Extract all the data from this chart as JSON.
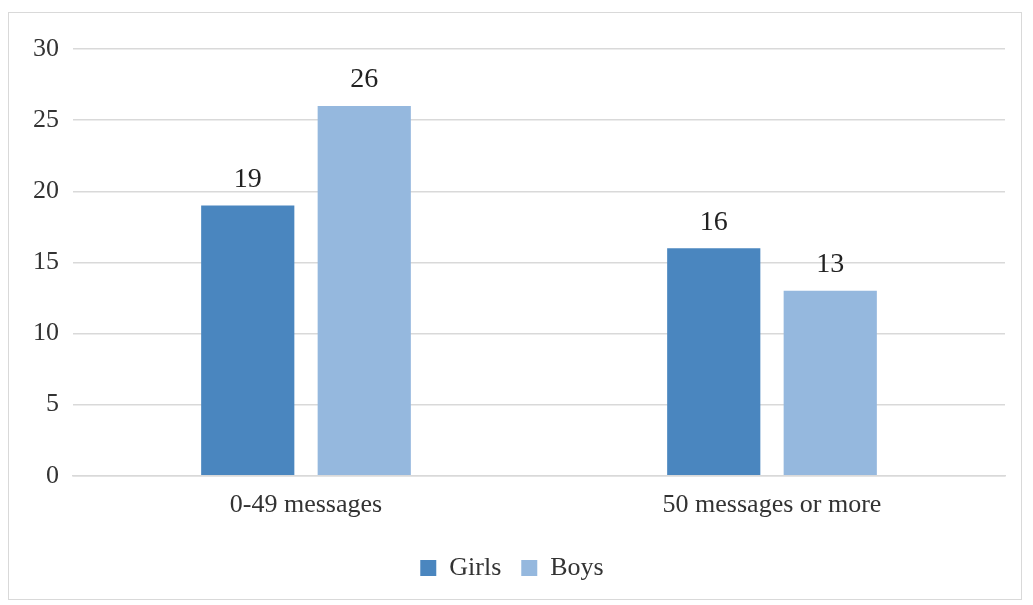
{
  "chart_data": {
    "type": "bar",
    "categories": [
      "0-49 messages",
      "50 messages or more"
    ],
    "series": [
      {
        "name": "Girls",
        "color": "#4a86bf",
        "values": [
          19,
          16
        ]
      },
      {
        "name": "Boys",
        "color": "#95b8de",
        "values": [
          26,
          13
        ]
      }
    ],
    "ylim": [
      0,
      30
    ],
    "yticks": [
      0,
      5,
      10,
      15,
      20,
      25,
      30
    ],
    "grid": "y",
    "legend": "bottom",
    "data_labels": true
  }
}
